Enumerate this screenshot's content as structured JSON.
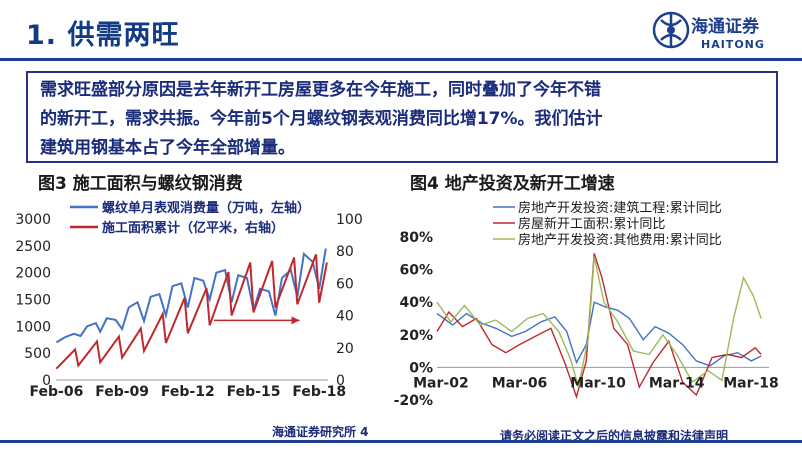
{
  "page": {
    "title": "1. 供需两旺",
    "logo": {
      "cn": "海通证券",
      "en": "HAITONG",
      "icon": "haitong-logo-icon"
    },
    "note": "需求旺盛部分原因是去年新开工房屋更多在今年施工，同时叠加了今年不错\n的新开工，需求共振。今年前5个月螺纹钢表观消费同比增17%。我们估计\n建筑用钢基本占了今年全部增量。",
    "fig3_title": "图3   施工面积与螺纹钢消费",
    "fig4_title": "图4   地产投资及新开工增速",
    "footer_left": "海通证券研究所 4",
    "footer_right": "请务必阅读正文之后的信息披露和法律声明"
  },
  "colors": {
    "blue": "#4472c4",
    "red": "#c0282d",
    "green": "#9bbb59",
    "brand": "#1c3f8e"
  },
  "chart_data": [
    {
      "type": "line",
      "x_tick_labels": [
        "Feb-06",
        "Feb-09",
        "Feb-12",
        "Feb-15",
        "Feb-18"
      ],
      "x_range": [
        2006.08,
        2018.5
      ],
      "y_left": {
        "ticks": [
          "0",
          "500",
          "1000",
          "1500",
          "2000",
          "2500",
          "3000"
        ],
        "lim": [
          0,
          3000
        ]
      },
      "y_right": {
        "ticks": [
          "0",
          "20",
          "40",
          "60",
          "80",
          "100"
        ],
        "lim": [
          0,
          100
        ]
      },
      "annotation": "arrow-right",
      "series": [
        {
          "name": "螺纹单月表观消费量（万吨，左轴）",
          "axis": "left",
          "color": "#4472c4",
          "x": [
            2006.1,
            2006.5,
            2006.9,
            2007.2,
            2007.5,
            2007.9,
            2008.1,
            2008.4,
            2008.8,
            2009.1,
            2009.4,
            2009.8,
            2010.1,
            2010.4,
            2010.8,
            2011.1,
            2011.4,
            2011.8,
            2012.1,
            2012.4,
            2012.8,
            2013.1,
            2013.4,
            2013.8,
            2014.1,
            2014.4,
            2014.8,
            2015.1,
            2015.4,
            2015.8,
            2016.1,
            2016.4,
            2016.8,
            2017.1,
            2017.4,
            2017.8,
            2018.1,
            2018.4
          ],
          "values": [
            700,
            800,
            860,
            820,
            1000,
            1060,
            900,
            1150,
            1120,
            950,
            1350,
            1450,
            1100,
            1550,
            1600,
            1200,
            1750,
            1800,
            1350,
            1900,
            1850,
            1500,
            2000,
            2050,
            1450,
            1950,
            1900,
            1300,
            1700,
            1650,
            1200,
            1900,
            2050,
            1550,
            2350,
            2200,
            1700,
            2450
          ]
        },
        {
          "name": "施工面积累计（亿平米，右轴）",
          "axis": "right",
          "color": "#c0282d",
          "x": [
            2006.1,
            2006.95,
            2007.1,
            2007.95,
            2008.1,
            2008.95,
            2009.1,
            2009.95,
            2010.1,
            2010.95,
            2011.1,
            2011.95,
            2012.1,
            2012.95,
            2013.1,
            2013.95,
            2014.1,
            2014.95,
            2015.1,
            2015.95,
            2016.1,
            2016.95,
            2017.1,
            2017.95,
            2018.1,
            2018.45
          ],
          "values": [
            7,
            19,
            9,
            24,
            11,
            27,
            14,
            32,
            18,
            41,
            23,
            51,
            29,
            57,
            34,
            67,
            40,
            73,
            42,
            74,
            45,
            76,
            47,
            78,
            48,
            73
          ]
        }
      ]
    },
    {
      "type": "line",
      "x_tick_labels": [
        "Mar-02",
        "Mar-06",
        "Mar-10",
        "Mar-14",
        "Mar-18"
      ],
      "x_range": [
        2002.0,
        2018.9
      ],
      "y_ticks": [
        "-20%",
        "0%",
        "20%",
        "40%",
        "60%",
        "80%"
      ],
      "ylim": [
        -20,
        80
      ],
      "series": [
        {
          "name": "房地产开发投资:建筑工程:累计同比",
          "color": "#4472c4",
          "x": [
            2002,
            2002.8,
            2003.5,
            2004.3,
            2005,
            2005.8,
            2006.5,
            2007.3,
            2008,
            2008.6,
            2009.1,
            2009.6,
            2010,
            2010.6,
            2011.2,
            2011.8,
            2012.5,
            2013.1,
            2013.8,
            2014.5,
            2015.2,
            2015.9,
            2016.6,
            2017.3,
            2018,
            2018.5
          ],
          "values": [
            33,
            26,
            33,
            27,
            24,
            19,
            22,
            28,
            31,
            22,
            3,
            14,
            40,
            37,
            35,
            30,
            17,
            25,
            21,
            14,
            4,
            1,
            7,
            9,
            4,
            7
          ]
        },
        {
          "name": "房屋新开工面积:累计同比",
          "color": "#c0282d",
          "x": [
            2002,
            2002.6,
            2003.3,
            2004,
            2004.8,
            2005.5,
            2006.2,
            2007,
            2007.8,
            2008.5,
            2009.1,
            2009.6,
            2010,
            2010.4,
            2011,
            2011.7,
            2012.3,
            2013,
            2013.8,
            2014.5,
            2015.2,
            2016,
            2016.8,
            2017.5,
            2018.2,
            2018.5
          ],
          "values": [
            22,
            34,
            25,
            30,
            14,
            9,
            14,
            19,
            24,
            3,
            -18,
            4,
            70,
            55,
            24,
            14,
            -12,
            3,
            16,
            -9,
            -17,
            6,
            8,
            6,
            12,
            8
          ]
        },
        {
          "name": "房地产开发投资:其他费用:累计同比",
          "color": "#9bbb59",
          "x": [
            2002,
            2002.7,
            2003.4,
            2004.2,
            2005,
            2005.8,
            2006.6,
            2007.4,
            2008.2,
            2008.8,
            2009.2,
            2009.7,
            2010,
            2010.5,
            2011.2,
            2012,
            2012.8,
            2013.5,
            2014.2,
            2015,
            2015.8,
            2016.5,
            2017.1,
            2017.6,
            2018.1,
            2018.5
          ],
          "values": [
            40,
            28,
            38,
            26,
            29,
            22,
            30,
            33,
            22,
            5,
            -12,
            18,
            68,
            40,
            28,
            10,
            8,
            20,
            8,
            -9,
            -2,
            -8,
            30,
            55,
            44,
            30
          ]
        }
      ]
    }
  ]
}
